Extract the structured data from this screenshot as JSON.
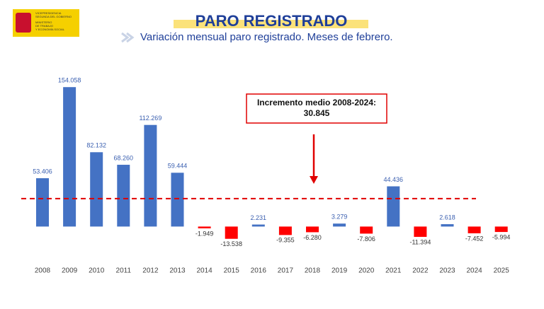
{
  "header": {
    "logo_lines": [
      "VICEPRESIDENCIA",
      "SEGUNDA DEL GOBIERNO",
      "MINISTERIO",
      "DE TRABAJO",
      "Y ECONOMÍA SOCIAL"
    ],
    "title": "PARO REGISTRADO",
    "subtitle": "Variación mensual paro registrado. Meses de febrero."
  },
  "chart_data": {
    "type": "bar",
    "categories": [
      "2008",
      "2009",
      "2010",
      "2011",
      "2012",
      "2013",
      "2014",
      "2015",
      "2016",
      "2017",
      "2018",
      "2019",
      "2020",
      "2021",
      "2022",
      "2023",
      "2024",
      "2025"
    ],
    "values": [
      53406,
      154058,
      82132,
      68260,
      112269,
      59444,
      -1949,
      -13538,
      2231,
      -9355,
      -6280,
      3279,
      -7806,
      44436,
      -11394,
      2618,
      -7452,
      -5994
    ],
    "value_labels": [
      "53.406",
      "154.058",
      "82.132",
      "68.260",
      "112.269",
      "59.444",
      "-1.949",
      "-13.538",
      "2.231",
      "-9.355",
      "-6.280",
      "3.279",
      "-7.806",
      "44.436",
      "-11.394",
      "2.618",
      "-7.452",
      "-5.994"
    ],
    "positive_color": "#4472c4",
    "negative_color": "#ff0000",
    "ylim": [
      -20000,
      180000
    ],
    "annotation": {
      "text": "Incremento medio 2008-2024:",
      "value": 30845,
      "value_label": "30.845",
      "color": "#e00000"
    }
  }
}
